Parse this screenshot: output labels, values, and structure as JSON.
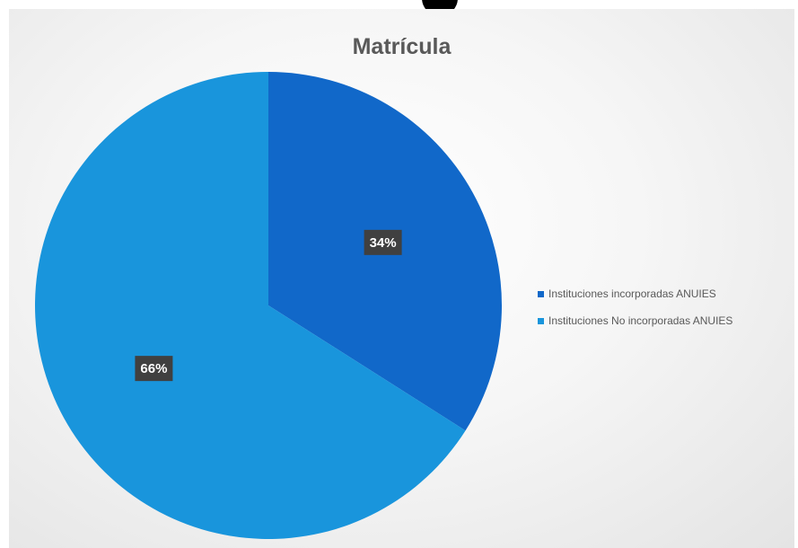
{
  "chart_data": {
    "type": "pie",
    "title": "Matrícula",
    "legend_position": "right",
    "slices": [
      {
        "label": "Instituciones incorporadas ANUIES",
        "value": 34,
        "data_label": "34%",
        "color": "#1168c9"
      },
      {
        "label": "Instituciones No incorporadas ANUIES",
        "value": 66,
        "data_label": "66%",
        "color": "#1995dc"
      }
    ]
  }
}
